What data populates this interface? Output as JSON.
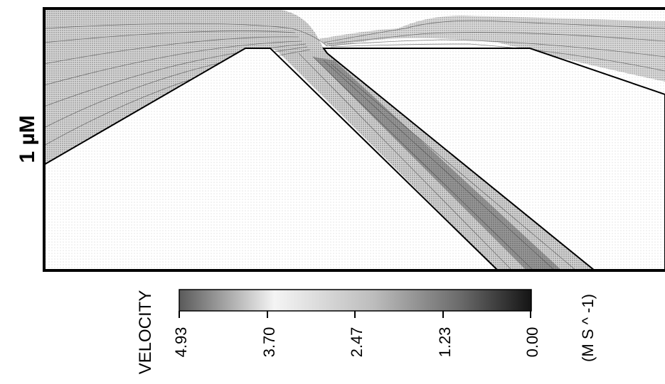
{
  "figure": {
    "scale_label": "1 µM",
    "colorbar": {
      "label": "VELOCITY",
      "units": "(M S ^ -1)",
      "ticks": [
        "4.93",
        "3.70",
        "2.47",
        "1.23",
        "0.00"
      ],
      "color_high": "#5a5a5a",
      "color_mid": "#f4f4f4",
      "color_low": "#141414"
    },
    "colors": {
      "border": "#000000",
      "background_dot": "#b8b8b8",
      "streamline": "#4a4a4a"
    }
  }
}
